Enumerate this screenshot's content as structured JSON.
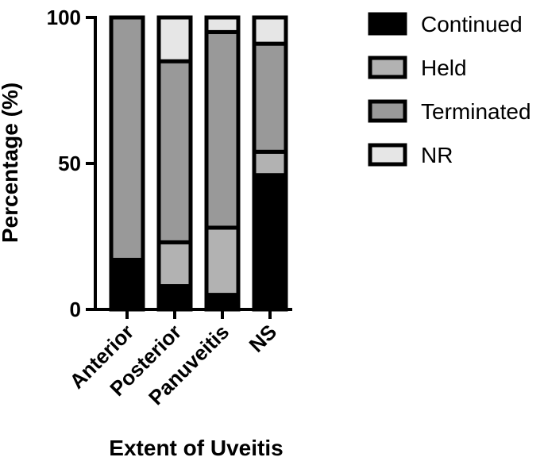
{
  "chart_data": {
    "type": "bar",
    "stacked": true,
    "title": "",
    "xlabel": "Extent of Uveitis",
    "ylabel": "Percentage (%)",
    "ylim": [
      0,
      100
    ],
    "yticks": [
      0,
      50,
      100
    ],
    "categories": [
      "Anterior",
      "Posterior",
      "Panuveitis",
      "NS"
    ],
    "series": [
      {
        "name": "Continued",
        "color": "#000000",
        "values": [
          17,
          8,
          5,
          46
        ]
      },
      {
        "name": "Held",
        "color": "#b2b2b2",
        "values": [
          0,
          15,
          23,
          8
        ]
      },
      {
        "name": "Terminated",
        "color": "#999999",
        "values": [
          83,
          62,
          67,
          37
        ]
      },
      {
        "name": "NR",
        "color": "#e6e6e6",
        "values": [
          0,
          15,
          5,
          9
        ]
      }
    ],
    "legend_position": "right",
    "grid": false
  }
}
